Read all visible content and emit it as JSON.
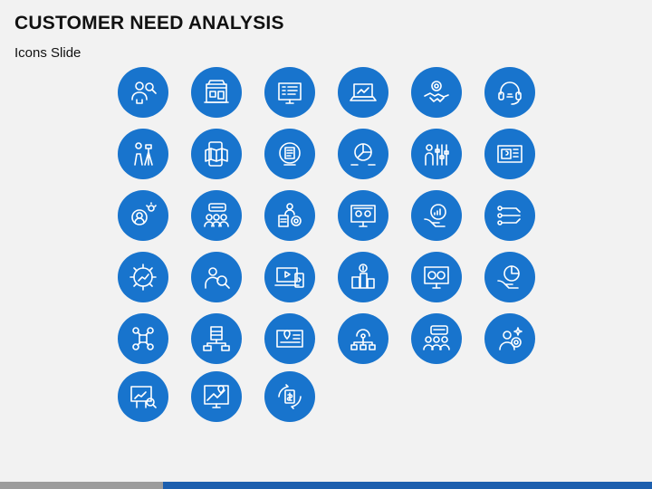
{
  "slide": {
    "title": "CUSTOMER NEED ANALYSIS",
    "subtitle": "Icons Slide"
  },
  "colors": {
    "background": "#f2f2f2",
    "icon_circle": "#1874cd",
    "icon_stroke": "#ffffff",
    "footer_grey": "#9c9c9c",
    "footer_blue": "#1d5fae"
  },
  "icons": [
    "customer-search-icon",
    "online-store-icon",
    "checklist-monitor-icon",
    "laptop-analytics-icon",
    "handshake-gear-icon",
    "headset-support-icon",
    "surveyor-icon",
    "mobile-map-icon",
    "globe-document-icon",
    "pie-chart-report-icon",
    "person-adjust-icon",
    "map-board-icon",
    "gear-person-idea-icon",
    "team-chat-icon",
    "person-gear-document-icon",
    "monitor-data-icon",
    "hand-growth-chart-icon",
    "process-flow-icon",
    "gear-growth-icon",
    "person-search-icon",
    "media-devices-icon",
    "city-dollar-icon",
    "monitor-dashboard-icon",
    "hand-pie-chart-icon",
    "people-network-icon",
    "server-network-icon",
    "location-map-board-icon",
    "gear-network-icon",
    "group-chat-icon",
    "person-target-icon",
    "presentation-search-icon",
    "map-screen-icon",
    "dollar-exchange-icon"
  ]
}
